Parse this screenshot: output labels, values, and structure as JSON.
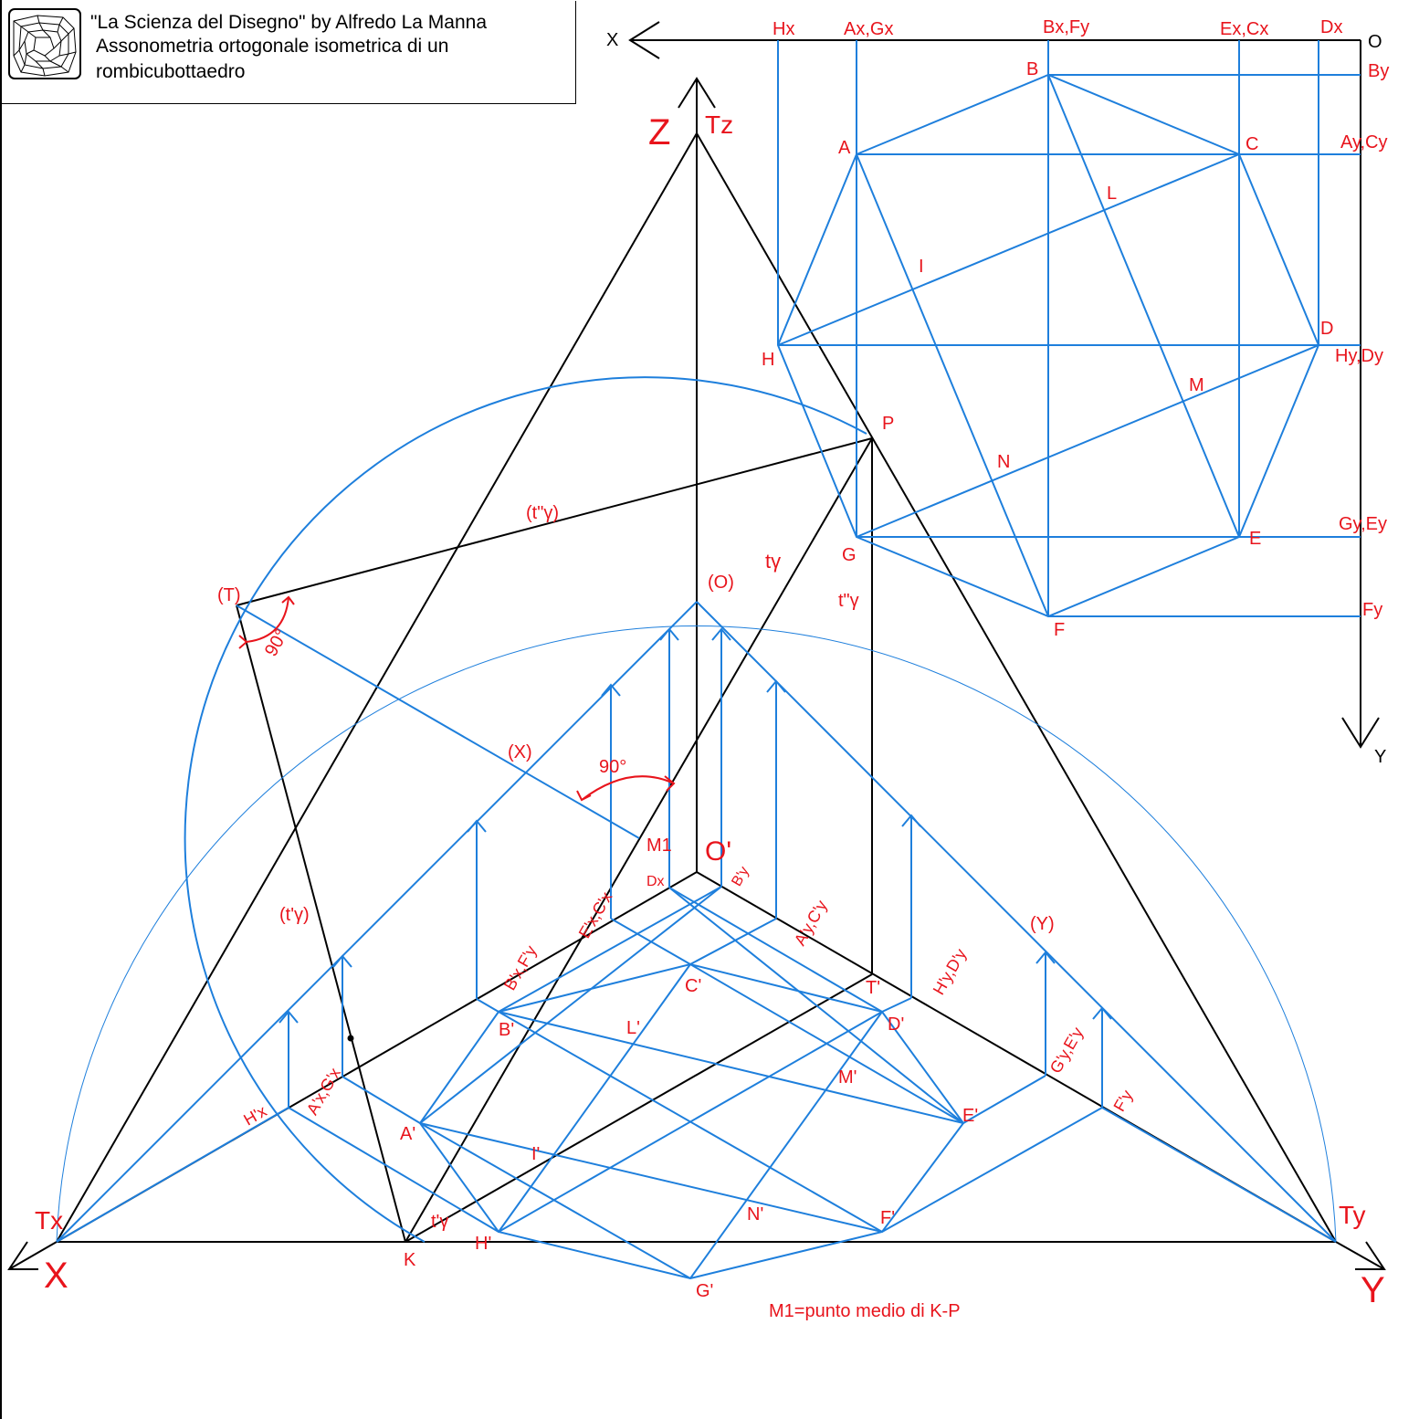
{
  "header": {
    "line1": "\"La Scienza del Disegno\" by Alfredo La Manna",
    "line2": "Assonometria ortogonale isometrica di un",
    "line3": "rombicubottaedro",
    "logo_icon": "polyhedron-logo-icon"
  },
  "colors": {
    "construction": "#000000",
    "geometry": "#1e7fdc",
    "labels": "#e8141c"
  },
  "note": "M1=punto medio di K-P",
  "axes_labels": {
    "X": "X",
    "Y": "Y",
    "Z": "Z",
    "Tx": "Tx",
    "Ty": "Ty",
    "Tz": "Tz",
    "K": "K",
    "O_prime": "O'",
    "M1": "M1",
    "T_prime": "T'",
    "plan_X": "X",
    "plan_Y": "Y",
    "plan_O": "O"
  },
  "construction_labels": {
    "T": "(T)",
    "X": "(X)",
    "Y": "(Y)",
    "O": "(O)",
    "P": "P",
    "t_gamma": "tγ",
    "t2_gamma_paren": "(t\"γ)",
    "t2_gamma": "t\"γ",
    "t1_gamma_paren": "(t'γ)",
    "t1_gamma": "t'γ",
    "angle_T": "90°",
    "angle_M1": "90°"
  },
  "plan_view": {
    "column_labels": [
      "Hx",
      "Ax,Gx",
      "Bx,Fy",
      "Ex,Cx",
      "Dx"
    ],
    "row_labels": [
      "By",
      "Ay,Cy",
      "Hy,Dy",
      "Gy,Ey",
      "Fy"
    ],
    "vertices": [
      "A",
      "B",
      "C",
      "D",
      "E",
      "F",
      "G",
      "H"
    ],
    "midpoints": [
      "I",
      "L",
      "M",
      "N"
    ]
  },
  "axonometric_view": {
    "vertices": [
      "A'",
      "B'",
      "C'",
      "D'",
      "E'",
      "F'",
      "G'",
      "H'"
    ],
    "midpoints": [
      "I'",
      "L'",
      "M'",
      "N'"
    ],
    "x_axis_labels": [
      "H'x",
      "A'x,G'x",
      "B'x,F'y",
      "E'x,C'x"
    ],
    "y_axis_labels": [
      "B'y",
      "A'y,C'y",
      "H'y,D'y",
      "G'y,E'y",
      "F'y"
    ],
    "dx_label": "Dx"
  }
}
